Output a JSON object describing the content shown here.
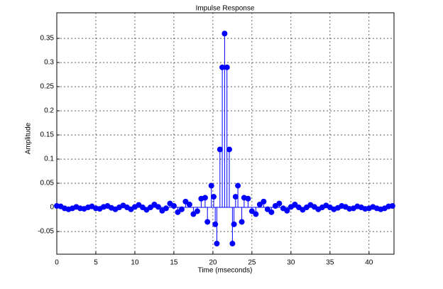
{
  "chart_data": {
    "type": "stem",
    "title": "Impulse Response",
    "x_label": "Time (mseconds)",
    "y_label": "Amplitude",
    "x": [
      0,
      0.5,
      1,
      1.5,
      2,
      2.5,
      3,
      3.5,
      4,
      4.5,
      5,
      5.5,
      6,
      6.5,
      7,
      7.5,
      8,
      8.5,
      9,
      9.5,
      10,
      10.5,
      11,
      11.5,
      12,
      12.5,
      13,
      13.5,
      14,
      14.5,
      15,
      15.5,
      16,
      16.5,
      17,
      17.5,
      18,
      18.5,
      19,
      19.3,
      19.8,
      20.1,
      20.3,
      20.5,
      20.9,
      21.2,
      21.5,
      21.8,
      22.1,
      22.5,
      22.7,
      22.9,
      23.2,
      23.7,
      24,
      24.5,
      25,
      25.5,
      26,
      26.5,
      27,
      27.5,
      28,
      28.5,
      29,
      29.5,
      30,
      30.5,
      31,
      31.5,
      32,
      32.5,
      33,
      33.5,
      34,
      34.5,
      35,
      35.5,
      36,
      36.5,
      37,
      37.5,
      38,
      38.5,
      39,
      39.5,
      40,
      40.5,
      41,
      41.5,
      42,
      42.5,
      43
    ],
    "values": [
      0.003,
      0.002,
      -0.002,
      -0.004,
      -0.002,
      0.001,
      -0.002,
      -0.003,
      0,
      0.002,
      -0.002,
      -0.003,
      0.001,
      0.003,
      -0.001,
      -0.004,
      0,
      0.004,
      0,
      -0.004,
      0.001,
      0.005,
      0,
      -0.005,
      0,
      0.006,
      0.001,
      -0.007,
      -0.002,
      0.008,
      0.003,
      -0.01,
      -0.004,
      0.012,
      0.006,
      -0.014,
      -0.008,
      0.018,
      0.02,
      -0.03,
      0.045,
      0.022,
      -0.035,
      -0.075,
      0.12,
      0.29,
      0.36,
      0.29,
      0.12,
      -0.075,
      -0.035,
      0.022,
      0.045,
      -0.03,
      0.02,
      0.018,
      -0.008,
      -0.014,
      0.006,
      0.012,
      -0.004,
      -0.01,
      0.003,
      0.008,
      -0.002,
      -0.007,
      0.001,
      0.006,
      0,
      -0.005,
      0,
      0.005,
      0.001,
      -0.004,
      0,
      0.004,
      0,
      -0.004,
      -0.001,
      0.003,
      0.001,
      -0.003,
      -0.002,
      0.002,
      0,
      -0.003,
      -0.002,
      0.001,
      -0.002,
      -0.004,
      -0.002,
      0.002,
      0.003
    ],
    "color": "#0000ff",
    "xlim": [
      0,
      43.2
    ],
    "xticks": [
      0,
      5,
      10,
      15,
      20,
      25,
      30,
      35,
      40
    ],
    "ylim": [
      -0.097,
      0.403
    ],
    "yticks": [
      -0.05,
      0,
      0.05,
      0.1,
      0.15,
      0.2,
      0.25,
      0.3,
      0.35
    ],
    "grid": true
  }
}
